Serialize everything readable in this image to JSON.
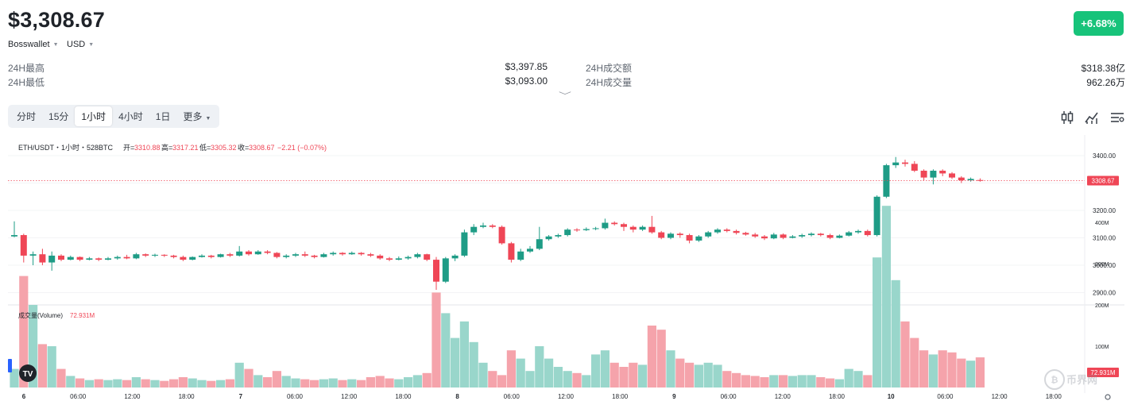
{
  "header": {
    "price": "$3,308.67",
    "change": "+6.68%",
    "exchange": "Bosswallet",
    "currency": "USD"
  },
  "stats": [
    {
      "label": "24H最高",
      "value": "$3,397.85"
    },
    {
      "label": "24H最低",
      "value": "$3,093.00"
    },
    {
      "label": "24H成交额",
      "value": "$318.38亿"
    },
    {
      "label": "24H成交量",
      "value": "962.26万"
    }
  ],
  "tabs": [
    "分时",
    "15分",
    "1小时",
    "4小时",
    "1日",
    "更多"
  ],
  "active_tab": "1小时",
  "legend": {
    "symbol": "ETH/USDT・1小时・528BTC",
    "open_label": "开=",
    "open": "3310.88",
    "high_label": "高=",
    "high": "3317.21",
    "low_label": "低=",
    "low": "3305.32",
    "close_label": "收=",
    "close": "3308.67",
    "change": "−2.21 (−0.07%)"
  },
  "volume_legend": {
    "label": "成交量(Volume)",
    "value": "72.931M"
  },
  "last_price_tag": "3308.67",
  "volume_tag": "72.931M",
  "watermark": "币界网",
  "tv_logo": "TV",
  "colors": {
    "up": "#1e9c86",
    "down": "#ef4656",
    "vol_up": "#99d6cb",
    "vol_down": "#f5a3ab",
    "badge": "#17c37a"
  },
  "icons": [
    "candlestick-icon",
    "indicator-icon",
    "settings-icon",
    "gear-icon"
  ],
  "chart_data": {
    "type": "candlestick",
    "price_axis": [
      "3400.00",
      "3300.00",
      "3200.00",
      "3100.00",
      "3000.00",
      "2900.00"
    ],
    "volume_axis": [
      "400M",
      "300M",
      "200M",
      "100M"
    ],
    "x_ticks": [
      "6",
      "06:00",
      "12:00",
      "18:00",
      "7",
      "06:00",
      "12:00",
      "18:00",
      "8",
      "06:00",
      "12:00",
      "18:00",
      "9",
      "06:00",
      "12:00",
      "18:00",
      "10",
      "06:00",
      "12:00",
      "18:00"
    ],
    "bold_ticks": [
      "6",
      "7",
      "8",
      "9",
      "10"
    ],
    "candles": [
      [
        3105,
        3110,
        3160,
        3102,
        45
      ],
      [
        3110,
        3035,
        3115,
        3010,
        270
      ],
      [
        3035,
        3040,
        3050,
        3000,
        200
      ],
      [
        3040,
        3010,
        3060,
        3000,
        105
      ],
      [
        3010,
        3035,
        3050,
        2980,
        100
      ],
      [
        3035,
        3020,
        3040,
        3015,
        45
      ],
      [
        3020,
        3030,
        3035,
        3018,
        28
      ],
      [
        3030,
        3020,
        3032,
        3015,
        22
      ],
      [
        3020,
        3025,
        3030,
        3018,
        18
      ],
      [
        3025,
        3020,
        3028,
        3015,
        20
      ],
      [
        3020,
        3025,
        3030,
        3018,
        18
      ],
      [
        3025,
        3030,
        3035,
        3020,
        20
      ],
      [
        3030,
        3025,
        3038,
        3022,
        18
      ],
      [
        3025,
        3040,
        3045,
        3022,
        25
      ],
      [
        3040,
        3035,
        3043,
        3030,
        20
      ],
      [
        3035,
        3038,
        3042,
        3030,
        18
      ],
      [
        3038,
        3035,
        3040,
        3030,
        16
      ],
      [
        3035,
        3030,
        3038,
        3025,
        20
      ],
      [
        3030,
        3020,
        3035,
        3015,
        25
      ],
      [
        3020,
        3030,
        3032,
        3018,
        22
      ],
      [
        3030,
        3035,
        3040,
        3028,
        18
      ],
      [
        3035,
        3030,
        3038,
        3025,
        16
      ],
      [
        3030,
        3040,
        3042,
        3028,
        18
      ],
      [
        3040,
        3035,
        3045,
        3030,
        20
      ],
      [
        3035,
        3050,
        3070,
        3032,
        60
      ],
      [
        3050,
        3040,
        3055,
        3035,
        45
      ],
      [
        3040,
        3050,
        3055,
        3038,
        30
      ],
      [
        3050,
        3045,
        3055,
        3040,
        25
      ],
      [
        3045,
        3030,
        3048,
        3025,
        40
      ],
      [
        3030,
        3035,
        3040,
        3025,
        28
      ],
      [
        3035,
        3040,
        3045,
        3030,
        22
      ],
      [
        3040,
        3035,
        3050,
        3030,
        20
      ],
      [
        3035,
        3030,
        3038,
        3025,
        18
      ],
      [
        3030,
        3040,
        3045,
        3028,
        20
      ],
      [
        3040,
        3045,
        3050,
        3035,
        22
      ],
      [
        3045,
        3040,
        3048,
        3035,
        18
      ],
      [
        3040,
        3045,
        3050,
        3038,
        20
      ],
      [
        3045,
        3040,
        3048,
        3035,
        18
      ],
      [
        3040,
        3035,
        3045,
        3030,
        25
      ],
      [
        3035,
        3025,
        3040,
        3020,
        28
      ],
      [
        3025,
        3020,
        3030,
        3015,
        22
      ],
      [
        3020,
        3025,
        3032,
        3018,
        20
      ],
      [
        3025,
        3030,
        3035,
        3020,
        25
      ],
      [
        3030,
        3040,
        3045,
        3025,
        30
      ],
      [
        3040,
        3020,
        3042,
        3015,
        35
      ],
      [
        3020,
        2940,
        3030,
        2910,
        230
      ],
      [
        2940,
        3025,
        3030,
        2935,
        180
      ],
      [
        3025,
        3035,
        3040,
        3015,
        120
      ],
      [
        3035,
        3120,
        3130,
        3030,
        160
      ],
      [
        3120,
        3140,
        3150,
        3110,
        110
      ],
      [
        3140,
        3145,
        3155,
        3135,
        60
      ],
      [
        3145,
        3140,
        3150,
        3135,
        40
      ],
      [
        3140,
        3080,
        3145,
        3075,
        30
      ],
      [
        3080,
        3020,
        3085,
        3010,
        90
      ],
      [
        3020,
        3050,
        3060,
        3015,
        70
      ],
      [
        3050,
        3060,
        3070,
        3045,
        40
      ],
      [
        3060,
        3095,
        3140,
        3055,
        100
      ],
      [
        3095,
        3105,
        3110,
        3090,
        70
      ],
      [
        3105,
        3110,
        3115,
        3100,
        50
      ],
      [
        3110,
        3130,
        3135,
        3105,
        40
      ],
      [
        3130,
        3128,
        3135,
        3122,
        35
      ],
      [
        3128,
        3132,
        3138,
        3125,
        30
      ],
      [
        3132,
        3135,
        3140,
        3128,
        80
      ],
      [
        3135,
        3155,
        3170,
        3130,
        90
      ],
      [
        3155,
        3150,
        3160,
        3145,
        60
      ],
      [
        3150,
        3140,
        3155,
        3125,
        50
      ],
      [
        3140,
        3130,
        3145,
        3120,
        60
      ],
      [
        3130,
        3140,
        3145,
        3125,
        55
      ],
      [
        3140,
        3120,
        3180,
        3115,
        150
      ],
      [
        3120,
        3100,
        3125,
        3095,
        140
      ],
      [
        3100,
        3115,
        3120,
        3095,
        90
      ],
      [
        3115,
        3110,
        3120,
        3100,
        70
      ],
      [
        3110,
        3090,
        3115,
        3080,
        60
      ],
      [
        3090,
        3105,
        3110,
        3085,
        55
      ],
      [
        3105,
        3120,
        3125,
        3100,
        60
      ],
      [
        3120,
        3130,
        3135,
        3115,
        55
      ],
      [
        3130,
        3125,
        3135,
        3120,
        40
      ],
      [
        3125,
        3118,
        3130,
        3112,
        35
      ],
      [
        3118,
        3112,
        3122,
        3108,
        30
      ],
      [
        3112,
        3105,
        3118,
        3100,
        28
      ],
      [
        3105,
        3098,
        3110,
        3092,
        25
      ],
      [
        3098,
        3112,
        3118,
        3095,
        30
      ],
      [
        3112,
        3100,
        3116,
        3095,
        30
      ],
      [
        3100,
        3105,
        3110,
        3098,
        28
      ],
      [
        3105,
        3110,
        3115,
        3100,
        30
      ],
      [
        3110,
        3115,
        3120,
        3105,
        30
      ],
      [
        3115,
        3110,
        3118,
        3105,
        25
      ],
      [
        3110,
        3100,
        3115,
        3095,
        22
      ],
      [
        3100,
        3108,
        3112,
        3098,
        20
      ],
      [
        3108,
        3120,
        3125,
        3105,
        45
      ],
      [
        3120,
        3125,
        3130,
        3115,
        40
      ],
      [
        3125,
        3110,
        3130,
        3105,
        30
      ],
      [
        3110,
        3250,
        3255,
        3105,
        315
      ],
      [
        3250,
        3365,
        3370,
        3245,
        440
      ],
      [
        3365,
        3375,
        3395,
        3355,
        260
      ],
      [
        3375,
        3370,
        3385,
        3360,
        160
      ],
      [
        3370,
        3345,
        3380,
        3340,
        120
      ],
      [
        3345,
        3320,
        3350,
        3310,
        90
      ],
      [
        3320,
        3345,
        3350,
        3295,
        80
      ],
      [
        3345,
        3335,
        3350,
        3325,
        90
      ],
      [
        3335,
        3320,
        3340,
        3315,
        85
      ],
      [
        3320,
        3310,
        3325,
        3300,
        70
      ],
      [
        3310,
        3315,
        3320,
        3305,
        65
      ],
      [
        3311,
        3309,
        3317,
        3305,
        73
      ]
    ]
  }
}
